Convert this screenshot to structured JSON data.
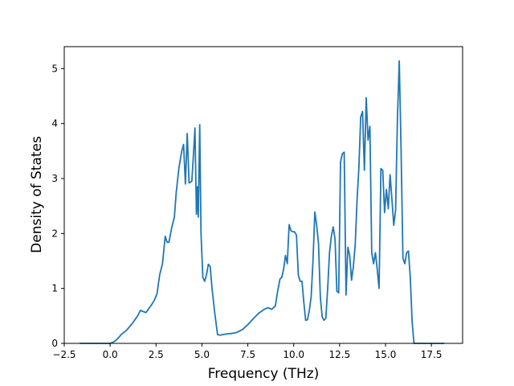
{
  "chart_data": {
    "type": "line",
    "xlabel": "Frequency (THz)",
    "ylabel": "Density of States",
    "xlim": [
      -2.5,
      19.2
    ],
    "ylim": [
      0,
      5.4
    ],
    "x_ticks": [
      -2.5,
      0.0,
      2.5,
      5.0,
      7.5,
      10.0,
      12.5,
      15.0,
      17.5
    ],
    "x_tick_labels": [
      "−2.5",
      "0.0",
      "2.5",
      "5.0",
      "7.5",
      "10.0",
      "12.5",
      "15.0",
      "17.5"
    ],
    "y_ticks": [
      0,
      1,
      2,
      3,
      4,
      5
    ],
    "y_tick_labels": [
      "0",
      "1",
      "2",
      "3",
      "4",
      "5"
    ],
    "grid": false,
    "line_color": "#1f77b4",
    "series": [
      {
        "x": [
          -1.65,
          0.0,
          0.15,
          0.3,
          0.45,
          0.6,
          0.75,
          0.9,
          1.05,
          1.2,
          1.35,
          1.5,
          1.65,
          1.8,
          1.95,
          2.1,
          2.25,
          2.4,
          2.55,
          2.7,
          2.85,
          3.0,
          3.1,
          3.2,
          3.35,
          3.5,
          3.6,
          3.75,
          3.9,
          4.0,
          4.1,
          4.2,
          4.3,
          4.45,
          4.55,
          4.62,
          4.7,
          4.75,
          4.8,
          4.88,
          4.95,
          5.05,
          5.15,
          5.25,
          5.35,
          5.45,
          5.55,
          5.7,
          5.85,
          6.0,
          6.3,
          6.6,
          6.9,
          7.2,
          7.5,
          7.8,
          8.1,
          8.4,
          8.6,
          8.8,
          9.0,
          9.1,
          9.25,
          9.35,
          9.45,
          9.55,
          9.65,
          9.75,
          9.85,
          9.95,
          10.05,
          10.15,
          10.25,
          10.35,
          10.45,
          10.55,
          10.65,
          10.75,
          10.85,
          10.95,
          11.05,
          11.15,
          11.25,
          11.35,
          11.45,
          11.55,
          11.65,
          11.75,
          11.85,
          11.95,
          12.05,
          12.15,
          12.25,
          12.35,
          12.45,
          12.55,
          12.65,
          12.75,
          12.85,
          12.95,
          13.05,
          13.15,
          13.25,
          13.35,
          13.45,
          13.55,
          13.65,
          13.75,
          13.85,
          13.95,
          14.05,
          14.15,
          14.25,
          14.35,
          14.45,
          14.55,
          14.65,
          14.75,
          14.85,
          14.95,
          15.05,
          15.15,
          15.25,
          15.35,
          15.45,
          15.55,
          15.65,
          15.75,
          15.85,
          15.95,
          16.05,
          16.15,
          16.25,
          16.35,
          16.45,
          16.55,
          16.65,
          16.8,
          17.0,
          17.5,
          18.2
        ],
        "y": [
          0.0,
          0.0,
          0.02,
          0.05,
          0.1,
          0.16,
          0.2,
          0.24,
          0.3,
          0.36,
          0.43,
          0.5,
          0.6,
          0.58,
          0.56,
          0.63,
          0.7,
          0.78,
          0.9,
          1.25,
          1.45,
          1.95,
          1.84,
          1.84,
          2.1,
          2.3,
          2.75,
          3.2,
          3.5,
          3.62,
          2.9,
          3.82,
          2.92,
          2.95,
          3.5,
          3.92,
          2.35,
          2.85,
          2.3,
          3.98,
          2.0,
          1.2,
          1.13,
          1.25,
          1.44,
          1.4,
          1.0,
          0.55,
          0.16,
          0.15,
          0.17,
          0.18,
          0.2,
          0.25,
          0.34,
          0.45,
          0.55,
          0.62,
          0.65,
          0.62,
          0.68,
          0.9,
          1.17,
          1.2,
          1.35,
          1.6,
          1.45,
          2.16,
          2.05,
          2.03,
          2.03,
          1.97,
          1.25,
          1.13,
          1.13,
          0.75,
          0.42,
          0.43,
          0.6,
          0.85,
          1.5,
          2.39,
          2.15,
          1.82,
          0.85,
          0.48,
          0.42,
          0.46,
          1.0,
          1.65,
          1.95,
          2.12,
          1.9,
          0.95,
          0.92,
          3.3,
          3.45,
          3.48,
          0.88,
          1.75,
          1.6,
          1.15,
          1.4,
          1.8,
          2.6,
          3.2,
          4.12,
          4.22,
          3.15,
          4.47,
          3.7,
          3.95,
          1.65,
          1.45,
          1.65,
          1.35,
          1.0,
          3.18,
          3.15,
          2.38,
          2.8,
          2.45,
          3.07,
          2.62,
          2.15,
          2.42,
          4.1,
          5.14,
          3.5,
          1.55,
          1.45,
          1.65,
          1.68,
          1.2,
          0.4,
          0.0,
          0.0,
          0.0,
          0.0,
          0.0,
          0.0
        ]
      }
    ]
  }
}
